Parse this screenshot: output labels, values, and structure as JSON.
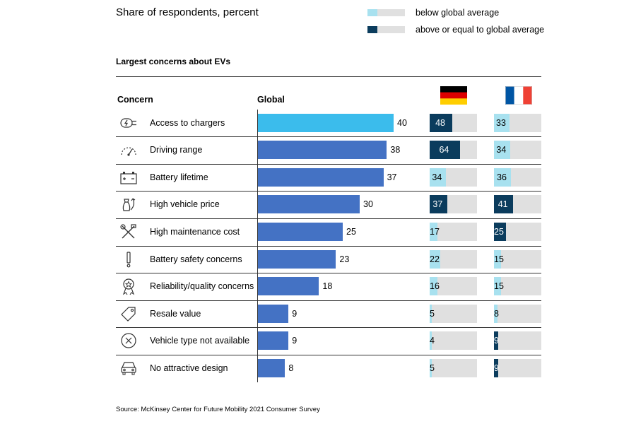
{
  "header": {
    "subtitle": "Share of respondents, percent",
    "legend": [
      {
        "label": "below global average",
        "color": "#a8e1ef"
      },
      {
        "label": "above or equal to global average",
        "color": "#0b3c5d"
      }
    ]
  },
  "chart_title": "Largest concerns about EVs",
  "columns": {
    "concern": "Concern",
    "global": "Global"
  },
  "flags": [
    {
      "name": "Germany",
      "colors": [
        "#000000",
        "#dd0000",
        "#ffce00"
      ],
      "orientation": "horizontal"
    },
    {
      "name": "France",
      "colors": [
        "#0055a4",
        "#ffffff",
        "#ef4135"
      ],
      "orientation": "vertical"
    }
  ],
  "colors": {
    "global_highlight": "#3bbcec",
    "global_bar": "#4472c4",
    "below": "#a8e1ef",
    "above": "#0b3c5d",
    "box_bg": "#e0e0e0"
  },
  "chart_data": {
    "type": "bar",
    "title": "Largest concerns about EVs",
    "subtitle": "Share of respondents, percent",
    "categories": [
      "Access to chargers",
      "Driving range",
      "Battery lifetime",
      "High vehicle price",
      "High maintenance cost",
      "Battery safety concerns",
      "Reliability/quality concerns",
      "Resale value",
      "Vehicle type not available",
      "No attractive design"
    ],
    "icons": [
      "charger-plug-icon",
      "speedometer-icon",
      "battery-icon",
      "money-bag-icon",
      "tools-icon",
      "exclamation-icon",
      "quality-badge-icon",
      "price-tag-icon",
      "x-circle-icon",
      "car-front-icon"
    ],
    "series": [
      {
        "name": "Global",
        "values": [
          40,
          38,
          37,
          30,
          25,
          23,
          18,
          9,
          9,
          8
        ]
      },
      {
        "values": [
          48,
          64,
          34,
          37,
          17,
          22,
          16,
          5,
          4,
          5
        ]
      },
      {
        "values": [
          33,
          34,
          36,
          41,
          25,
          15,
          15,
          8,
          9,
          9
        ]
      }
    ],
    "xlim": [
      0,
      100
    ],
    "legend": [
      "below global average",
      "above or equal to global average"
    ]
  },
  "footer": {
    "source": "Source: McKinsey Center for Future Mobility 2021 Consumer Survey"
  }
}
